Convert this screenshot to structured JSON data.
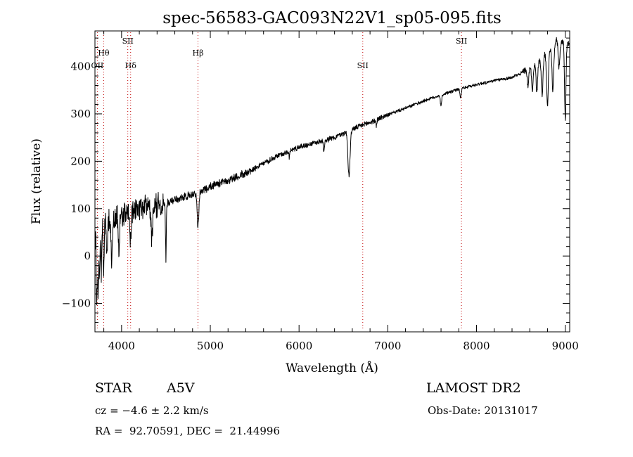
{
  "chart_data": {
    "type": "line",
    "title": "spec-56583-GAC093N22V1_sp05-095.fits",
    "xlabel": "Wavelength (Å)",
    "ylabel": "Flux (relative)",
    "xlim": [
      3700,
      9050
    ],
    "ylim": [
      -160,
      475
    ],
    "xticks": [
      4000,
      5000,
      6000,
      7000,
      8000,
      9000
    ],
    "yticks": [
      -100,
      0,
      100,
      200,
      300,
      400
    ],
    "line_color": "#000000",
    "marker_color": "#c00000",
    "spectrum": {
      "continuum": [
        [
          3700,
          40
        ],
        [
          3800,
          70
        ],
        [
          3900,
          80
        ],
        [
          4000,
          85
        ],
        [
          4100,
          95
        ],
        [
          4200,
          100
        ],
        [
          4300,
          105
        ],
        [
          4500,
          110
        ],
        [
          4700,
          125
        ],
        [
          4850,
          132
        ],
        [
          5000,
          147
        ],
        [
          5200,
          160
        ],
        [
          5400,
          175
        ],
        [
          5600,
          195
        ],
        [
          5800,
          215
        ],
        [
          6000,
          230
        ],
        [
          6200,
          240
        ],
        [
          6400,
          250
        ],
        [
          6600,
          268
        ],
        [
          6800,
          282
        ],
        [
          7000,
          298
        ],
        [
          7200,
          312
        ],
        [
          7400,
          327
        ],
        [
          7600,
          340
        ],
        [
          7800,
          352
        ],
        [
          8000,
          362
        ],
        [
          8200,
          370
        ],
        [
          8400,
          377
        ],
        [
          8500,
          385
        ],
        [
          8700,
          410
        ],
        [
          8900,
          455
        ],
        [
          9000,
          450
        ]
      ],
      "absorption_lines": [
        {
          "w": 3720,
          "depth": 150,
          "width": 5
        },
        {
          "w": 3735,
          "depth": 120,
          "width": 5
        },
        {
          "w": 3750,
          "depth": 110,
          "width": 5
        },
        {
          "w": 3771,
          "depth": 100,
          "width": 5
        },
        {
          "w": 3798,
          "depth": 100,
          "width": 6
        },
        {
          "w": 3835,
          "depth": 80,
          "width": 6
        },
        {
          "w": 3889,
          "depth": 80,
          "width": 7
        },
        {
          "w": 3970,
          "depth": 70,
          "width": 7
        },
        {
          "w": 4101,
          "depth": 60,
          "width": 8
        },
        {
          "w": 4340,
          "depth": 70,
          "width": 9
        },
        {
          "w": 4500,
          "depth": 120,
          "width": 4
        },
        {
          "w": 4861,
          "depth": 70,
          "width": 9
        },
        {
          "w": 5890,
          "depth": 15,
          "width": 5
        },
        {
          "w": 6280,
          "depth": 25,
          "width": 5
        },
        {
          "w": 6563,
          "depth": 95,
          "width": 12
        },
        {
          "w": 6870,
          "depth": 12,
          "width": 6
        },
        {
          "w": 7600,
          "depth": 25,
          "width": 7
        },
        {
          "w": 7820,
          "depth": 20,
          "width": 7
        }
      ],
      "far_red_bands": [
        {
          "w": 8580,
          "depth": 40,
          "width": 8
        },
        {
          "w": 8630,
          "depth": 55,
          "width": 8
        },
        {
          "w": 8680,
          "depth": 60,
          "width": 9
        },
        {
          "w": 8740,
          "depth": 80,
          "width": 9
        },
        {
          "w": 8800,
          "depth": 115,
          "width": 10
        },
        {
          "w": 8860,
          "depth": 95,
          "width": 10
        },
        {
          "w": 8930,
          "depth": 55,
          "width": 9
        },
        {
          "w": 9000,
          "depth": 160,
          "width": 8
        }
      ],
      "noise": [
        {
          "from": 3700,
          "to": 4500,
          "amp": 24
        },
        {
          "from": 4500,
          "to": 5500,
          "amp": 7
        },
        {
          "from": 5500,
          "to": 7000,
          "amp": 5
        },
        {
          "from": 7000,
          "to": 8500,
          "amp": 3
        },
        {
          "from": 8500,
          "to": 9050,
          "amp": 6
        }
      ]
    },
    "line_markers": [
      {
        "label": "Hθ",
        "x": 3798,
        "level": "mid-high",
        "color": "#c00000"
      },
      {
        "label": "OII",
        "x": 3727,
        "level": "mid",
        "color": "#c00000"
      },
      {
        "label": "SII",
        "x": 4070,
        "level": "top",
        "color": "#c00000"
      },
      {
        "label": "Hδ",
        "x": 4102,
        "level": "mid",
        "color": "#c00000"
      },
      {
        "label": "Hβ",
        "x": 4861,
        "level": "mid-high",
        "color": "#c00000"
      },
      {
        "label": "SII",
        "x": 6718,
        "level": "mid",
        "color": "#c00000"
      },
      {
        "label": "SII",
        "x": 7830,
        "level": "top",
        "color": "#c00000"
      }
    ]
  },
  "info": {
    "object_class": "STAR",
    "subclass": "A5V",
    "survey": "LAMOST DR2",
    "redshift": "cz = −4.6 ± 2.2 km/s",
    "obs_date": "Obs-Date: 20131017",
    "coords": "RA =  92.70591, DEC =  21.44996"
  }
}
